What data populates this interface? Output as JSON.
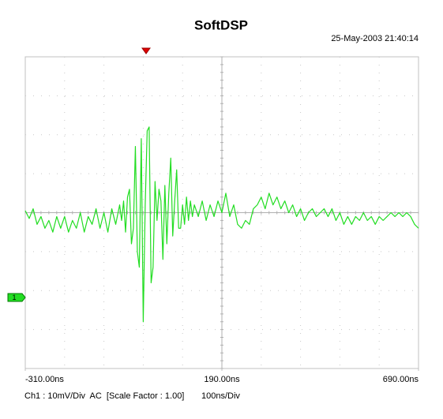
{
  "chart_data": {
    "type": "line",
    "title": "SoftDSP",
    "timestamp": "25-May-2003 21:40:14",
    "channel_marker": "1",
    "status": [
      "Ch1 : 10mV/Div  AC  [Scale Factor : 1.00]",
      "100ns/Div"
    ],
    "xlim": [
      -310,
      690
    ],
    "ylim": [
      -40,
      40
    ],
    "xticks": [
      {
        "value": -310,
        "label": "-310.00ns"
      },
      {
        "value": 190,
        "label": "190.00ns"
      },
      {
        "value": 690,
        "label": "690.00ns"
      }
    ],
    "grid": true,
    "x": [
      -310,
      -300,
      -290,
      -280,
      -270,
      -260,
      -250,
      -240,
      -230,
      -220,
      -210,
      -200,
      -190,
      -180,
      -170,
      -160,
      -150,
      -140,
      -130,
      -120,
      -110,
      -100,
      -90,
      -80,
      -70,
      -65,
      -60,
      -55,
      -50,
      -45,
      -40,
      -35,
      -30,
      -25,
      -20,
      -15,
      -10,
      -5,
      0,
      5,
      10,
      15,
      20,
      25,
      30,
      35,
      40,
      45,
      50,
      55,
      60,
      65,
      70,
      75,
      80,
      85,
      90,
      95,
      100,
      105,
      110,
      115,
      120,
      130,
      140,
      150,
      160,
      170,
      180,
      190,
      200,
      210,
      220,
      230,
      240,
      250,
      260,
      270,
      280,
      290,
      300,
      310,
      320,
      330,
      340,
      350,
      360,
      370,
      380,
      390,
      400,
      410,
      420,
      430,
      440,
      450,
      460,
      470,
      480,
      490,
      500,
      510,
      520,
      530,
      540,
      550,
      560,
      570,
      580,
      590,
      600,
      610,
      620,
      630,
      640,
      650,
      660,
      670,
      680,
      690
    ],
    "series": [
      {
        "color": "#22dd22",
        "values": [
          0.5,
          -1.5,
          1,
          -3,
          -1,
          -4,
          -2,
          -5,
          -1,
          -4,
          -1,
          -5,
          -2,
          -4,
          0,
          -5,
          -1,
          -3,
          1,
          -4,
          0,
          -5,
          1,
          -3,
          2,
          -2,
          3,
          -5,
          4,
          6,
          -8,
          -4,
          17,
          -10,
          -14,
          19,
          -28,
          2,
          21,
          22,
          -18,
          -14,
          8,
          -2,
          6,
          3,
          -12,
          7,
          -8,
          5,
          14,
          -6,
          3,
          11,
          -4,
          -4,
          2,
          -3,
          4,
          -2,
          3,
          -1,
          2,
          -1,
          3,
          -2,
          2,
          -1,
          3,
          0,
          5,
          -1,
          2,
          -3,
          -4,
          -2,
          -3,
          1,
          2,
          4,
          1,
          5,
          2,
          4,
          1,
          3,
          0,
          2,
          -1,
          1,
          -2,
          0,
          1,
          -1,
          0,
          1,
          -1,
          1,
          -2,
          0,
          -3,
          -1,
          -3,
          -1,
          -2,
          0,
          -2,
          -1,
          -3,
          -1,
          -2,
          -1,
          0,
          -1,
          0,
          -1,
          0,
          -1,
          -3,
          -4
        ]
      }
    ]
  }
}
